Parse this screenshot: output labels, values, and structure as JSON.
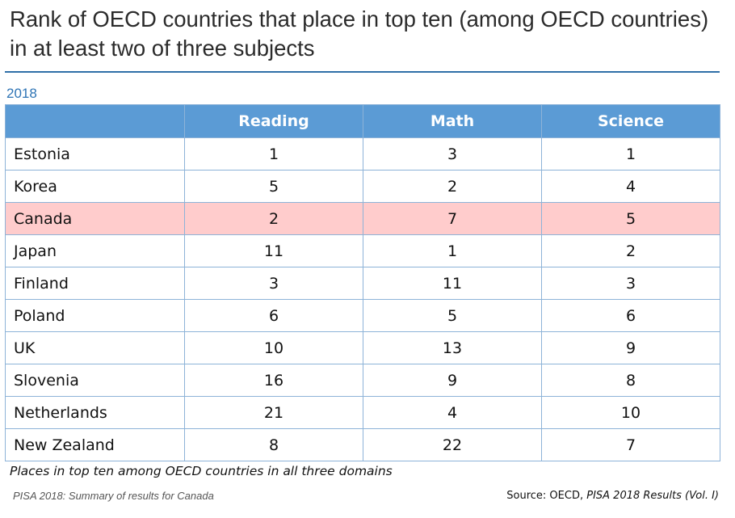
{
  "title": "Rank of OECD countries that place in top ten (among OECD countries) in at least two of three subjects",
  "year_label": "2018",
  "table": {
    "columns": [
      "",
      "Reading",
      "Math",
      "Science"
    ]
  },
  "footnote": "Places in top ten among OECD countries in all three domains",
  "source_doc": "PISA 2018: Summary of results for Canada",
  "source": {
    "prefix": "Source: OECD, ",
    "title": "PISA 2018 Results (Vol. I)"
  },
  "colors": {
    "header_bg": "#5b9bd5",
    "highlight_row": "#ffcccc",
    "rule": "#2f6fa8"
  },
  "chart_data": {
    "type": "table",
    "title": "Rank of OECD countries that place in top ten (among OECD countries) in at least two of three subjects",
    "subtitle": "2018",
    "columns": [
      "Reading",
      "Math",
      "Science"
    ],
    "rows": [
      {
        "country": "Estonia",
        "values": [
          1,
          3,
          1
        ],
        "highlight": false
      },
      {
        "country": "Korea",
        "values": [
          5,
          2,
          4
        ],
        "highlight": false
      },
      {
        "country": "Canada",
        "values": [
          2,
          7,
          5
        ],
        "highlight": true
      },
      {
        "country": "Japan",
        "values": [
          11,
          1,
          2
        ],
        "highlight": false
      },
      {
        "country": "Finland",
        "values": [
          3,
          11,
          3
        ],
        "highlight": false
      },
      {
        "country": "Poland",
        "values": [
          6,
          5,
          6
        ],
        "highlight": false
      },
      {
        "country": "UK",
        "values": [
          10,
          13,
          9
        ],
        "highlight": false
      },
      {
        "country": "Slovenia",
        "values": [
          16,
          9,
          8
        ],
        "highlight": false
      },
      {
        "country": "Netherlands",
        "values": [
          21,
          4,
          10
        ],
        "highlight": false
      },
      {
        "country": "New Zealand",
        "values": [
          8,
          22,
          7
        ],
        "highlight": false
      }
    ]
  }
}
